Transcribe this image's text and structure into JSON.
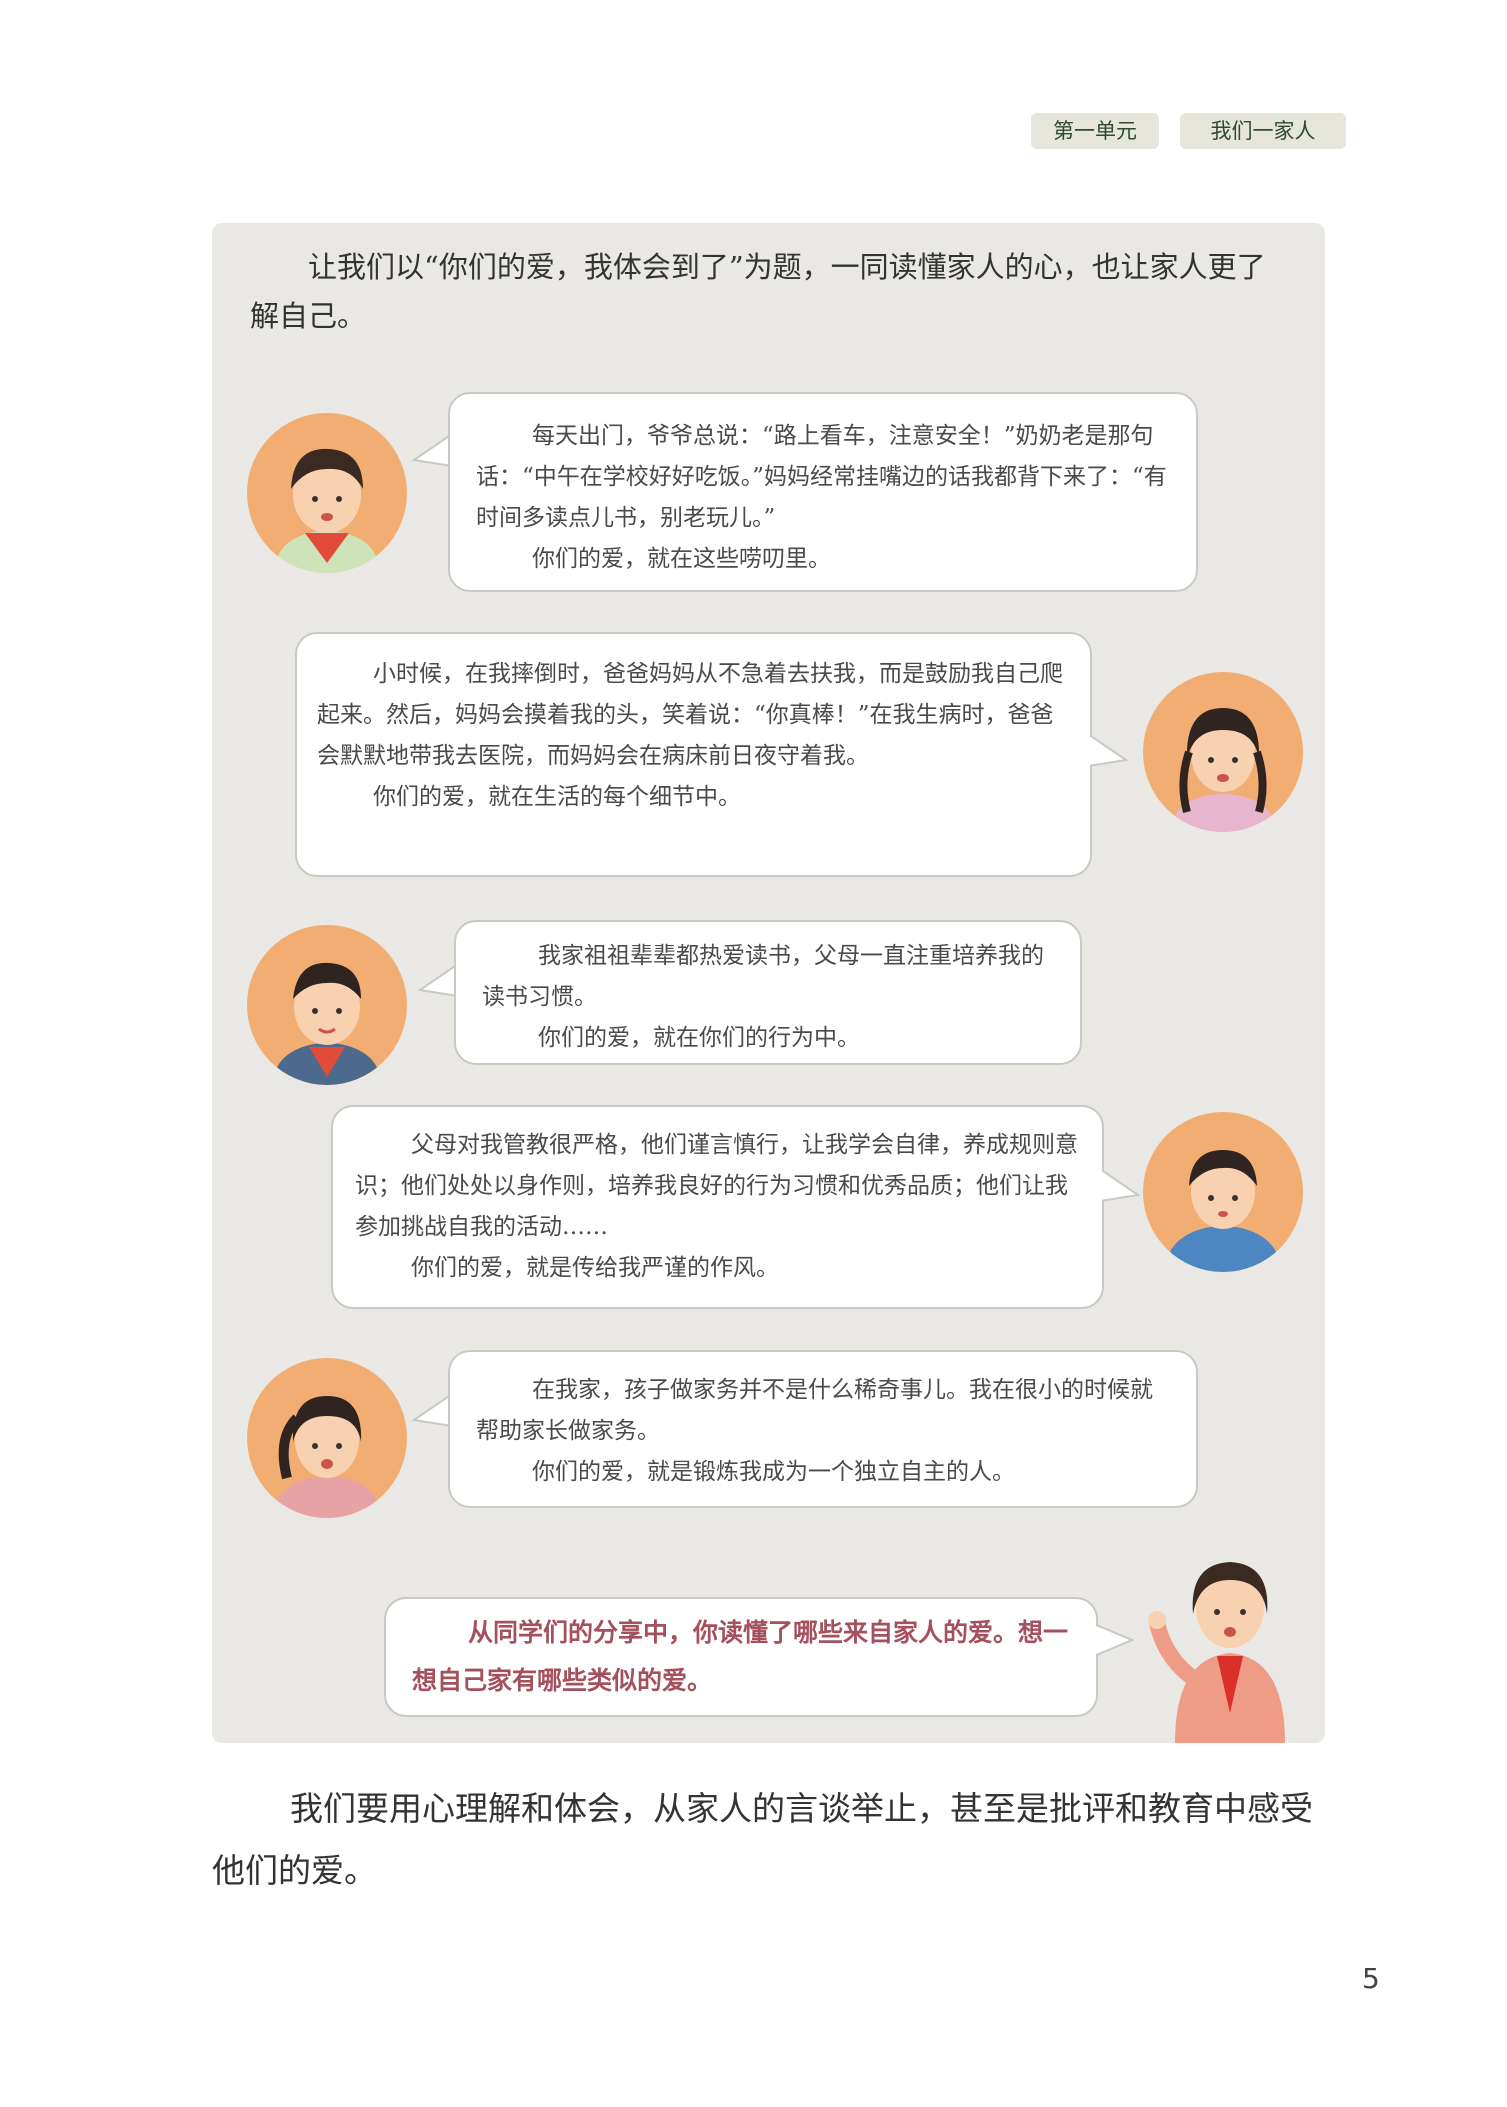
{
  "header": {
    "unit": "第一单元",
    "title": "我们一家人"
  },
  "intro": "让我们以“你们的爱，我体会到了”为题，一同读懂家人的心，也让家人更了解自己。",
  "bubbles": [
    {
      "p1": "每天出门，爷爷总说：“路上看车，注意安全！”奶奶老是那句话：“中午在学校好好吃饭。”妈妈经常挂嘴边的话我都背下来了：“有时间多读点儿书，别老玩儿。”",
      "p2": "你们的爱，就在这些唠叨里。"
    },
    {
      "p1": "小时候，在我摔倒时，爸爸妈妈从不急着去扶我，而是鼓励我自己爬起来。然后，妈妈会摸着我的头，笑着说：“你真棒！”在我生病时，爸爸会默默地带我去医院，而妈妈会在病床前日夜守着我。",
      "p2": "你们的爱，就在生活的每个细节中。"
    },
    {
      "p1": "我家祖祖辈辈都热爱读书，父母一直注重培养我的读书习惯。",
      "p2": "你们的爱，就在你们的行为中。"
    },
    {
      "p1": "父母对我管教很严格，他们谨言慎行，让我学会自律，养成规则意识；他们处处以身作则，培养我良好的行为习惯和优秀品质；他们让我参加挑战自我的活动……",
      "p2": "你们的爱，就是传给我严谨的作风。"
    },
    {
      "p1": "在我家，孩子做家务并不是什么稀奇事儿。我在很小的时候就帮助家长做家务。",
      "p2": "你们的爱，就是锻炼我成为一个独立自主的人。"
    }
  ],
  "prompt": "从同学们的分享中，你读懂了哪些来自家人的爱。想一想自己家有哪些类似的爱。",
  "closing": "我们要用心理解和体会，从家人的言谈举止，甚至是批评和教育中感受他们的爱。",
  "page_number": "5"
}
